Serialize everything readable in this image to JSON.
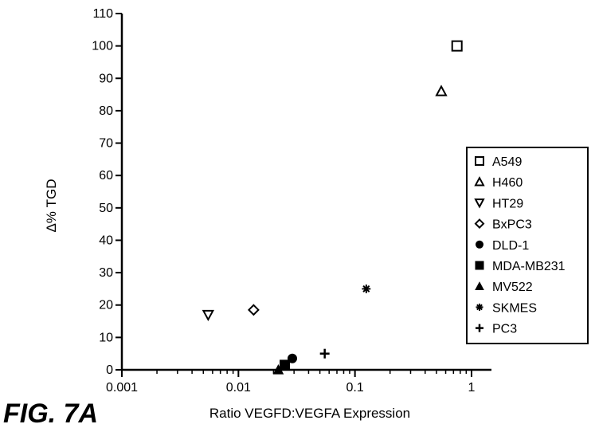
{
  "figure_label": "FIG. 7A",
  "chart_data": {
    "type": "scatter",
    "title": "",
    "xlabel": "Ratio VEGFD:VEGFA Expression",
    "ylabel": "Δ% TGD",
    "xscale": "log",
    "xlim": [
      0.001,
      1.5
    ],
    "ylim": [
      0,
      110
    ],
    "x_ticks": [
      0.001,
      0.01,
      0.1,
      1
    ],
    "x_tick_labels": [
      "0.001",
      "0.01",
      "0.1",
      "1"
    ],
    "y_ticks": [
      0,
      10,
      20,
      30,
      40,
      50,
      60,
      70,
      80,
      90,
      100,
      110
    ],
    "y_tick_labels": [
      "0",
      "10",
      "20",
      "30",
      "40",
      "50",
      "60",
      "70",
      "80",
      "90",
      "100",
      "110"
    ],
    "grid": false,
    "legend_position": "right",
    "series": [
      {
        "name": "A549",
        "marker": "square-open",
        "x": 0.75,
        "y": 100
      },
      {
        "name": "H460",
        "marker": "triangle-up-open",
        "x": 0.55,
        "y": 86
      },
      {
        "name": "HT29",
        "marker": "triangle-down-open",
        "x": 0.0055,
        "y": 17
      },
      {
        "name": "BxPC3",
        "marker": "diamond-open",
        "x": 0.0135,
        "y": 18.5
      },
      {
        "name": "DLD-1",
        "marker": "circle-filled",
        "x": 0.029,
        "y": 3.5
      },
      {
        "name": "MDA-MB231",
        "marker": "square-filled",
        "x": 0.025,
        "y": 1.5
      },
      {
        "name": "MV522",
        "marker": "triangle-up-filled",
        "x": 0.022,
        "y": 0
      },
      {
        "name": "SKMES",
        "marker": "asterisk",
        "x": 0.125,
        "y": 25
      },
      {
        "name": "PC3",
        "marker": "plus",
        "x": 0.055,
        "y": 5
      }
    ]
  }
}
